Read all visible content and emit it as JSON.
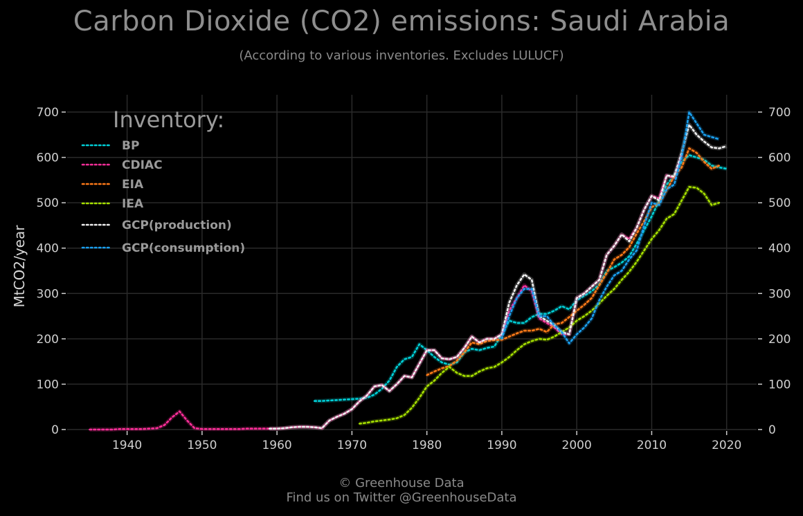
{
  "title": "Carbon Dioxide (CO2) emissions: Saudi Arabia",
  "subtitle": "(According to various inventories. Excludes LULUCF)",
  "footer": {
    "line1": "© Greenhouse Data",
    "line2": "Find us on Twitter @GreenhouseData"
  },
  "chart_data": {
    "type": "line",
    "ylabel": "MtCO2/year",
    "xlim": [
      1932,
      2024
    ],
    "ylim": [
      0,
      700
    ],
    "xticks": [
      1940,
      1950,
      1960,
      1970,
      1980,
      1990,
      2000,
      2010,
      2020
    ],
    "yticks": [
      0,
      100,
      200,
      300,
      400,
      500,
      600,
      700
    ],
    "grid": true,
    "legend_title": "Inventory:",
    "legend_position": "top-left",
    "series": [
      {
        "name": "BP",
        "color": "#00d0d8",
        "x": [
          1965,
          1966,
          1967,
          1968,
          1969,
          1970,
          1971,
          1972,
          1973,
          1974,
          1975,
          1976,
          1977,
          1978,
          1979,
          1980,
          1981,
          1982,
          1983,
          1984,
          1985,
          1986,
          1987,
          1988,
          1989,
          1990,
          1991,
          1992,
          1993,
          1994,
          1995,
          1996,
          1997,
          1998,
          1999,
          2000,
          2001,
          2002,
          2003,
          2004,
          2005,
          2006,
          2007,
          2008,
          2009,
          2010,
          2011,
          2012,
          2013,
          2014,
          2015,
          2016,
          2017,
          2018,
          2019,
          2020
        ],
        "y": [
          63,
          63,
          64,
          65,
          66,
          67,
          68,
          70,
          77,
          90,
          108,
          138,
          155,
          160,
          188,
          175,
          160,
          148,
          143,
          148,
          170,
          178,
          175,
          180,
          183,
          210,
          240,
          235,
          235,
          248,
          255,
          255,
          262,
          272,
          265,
          285,
          295,
          305,
          320,
          350,
          358,
          368,
          382,
          410,
          440,
          470,
          505,
          540,
          560,
          590,
          605,
          600,
          595,
          582,
          578,
          575
        ]
      },
      {
        "name": "CDIAC",
        "color": "#ff2e9a",
        "x": [
          1935,
          1936,
          1937,
          1938,
          1939,
          1940,
          1941,
          1942,
          1943,
          1944,
          1945,
          1946,
          1947,
          1948,
          1949,
          1950,
          1951,
          1952,
          1953,
          1954,
          1955,
          1956,
          1957,
          1958,
          1959,
          1960,
          1961,
          1962,
          1963,
          1964,
          1965,
          1966,
          1967,
          1968,
          1969,
          1970,
          1971,
          1972,
          1973,
          1974,
          1975,
          1976,
          1977,
          1978,
          1979,
          1980,
          1981,
          1982,
          1983,
          1984,
          1985,
          1986,
          1987,
          1988,
          1989,
          1990,
          1991,
          1992,
          1993,
          1994,
          1995,
          1996,
          1997,
          1998,
          1999,
          2000,
          2001,
          2002,
          2003,
          2004,
          2005,
          2006,
          2007,
          2008,
          2009,
          2010,
          2011,
          2012,
          2013,
          2014
        ],
        "y": [
          0,
          0,
          0,
          0,
          1,
          1,
          1,
          1,
          2,
          3,
          10,
          27,
          40,
          20,
          3,
          1,
          1,
          1,
          1,
          1,
          1,
          2,
          2,
          2,
          2,
          2,
          3,
          5,
          6,
          6,
          5,
          3,
          20,
          28,
          35,
          45,
          62,
          75,
          95,
          98,
          85,
          100,
          118,
          115,
          145,
          175,
          175,
          157,
          155,
          160,
          180,
          205,
          192,
          200,
          200,
          210,
          262,
          290,
          318,
          305,
          245,
          235,
          225,
          210,
          210,
          290,
          300,
          315,
          330,
          385,
          405,
          430,
          420,
          445,
          485,
          515,
          510,
          560,
          555,
          605
        ]
      },
      {
        "name": "EIA",
        "color": "#ff7a18",
        "x": [
          1980,
          1981,
          1982,
          1983,
          1984,
          1985,
          1986,
          1987,
          1988,
          1989,
          1990,
          1991,
          1992,
          1993,
          1994,
          1995,
          1996,
          1997,
          1998,
          1999,
          2000,
          2001,
          2002,
          2003,
          2004,
          2005,
          2006,
          2007,
          2008,
          2009,
          2010,
          2011,
          2012,
          2013,
          2014,
          2015,
          2016,
          2017,
          2018,
          2019
        ],
        "y": [
          120,
          128,
          135,
          140,
          152,
          170,
          192,
          188,
          195,
          197,
          198,
          205,
          212,
          218,
          218,
          222,
          215,
          232,
          235,
          248,
          262,
          275,
          290,
          318,
          345,
          375,
          385,
          402,
          432,
          460,
          490,
          500,
          528,
          558,
          578,
          620,
          610,
          590,
          575,
          582
        ]
      },
      {
        "name": "IEA",
        "color": "#a6e000",
        "x": [
          1971,
          1972,
          1973,
          1974,
          1975,
          1976,
          1977,
          1978,
          1979,
          1980,
          1981,
          1982,
          1983,
          1984,
          1985,
          1986,
          1987,
          1988,
          1989,
          1990,
          1991,
          1992,
          1993,
          1994,
          1995,
          1996,
          1997,
          1998,
          1999,
          2000,
          2001,
          2002,
          2003,
          2004,
          2005,
          2006,
          2007,
          2008,
          2009,
          2010,
          2011,
          2012,
          2013,
          2014,
          2015,
          2016,
          2017,
          2018,
          2019
        ],
        "y": [
          13,
          15,
          18,
          20,
          22,
          25,
          32,
          48,
          70,
          95,
          108,
          125,
          138,
          125,
          118,
          118,
          128,
          135,
          138,
          148,
          160,
          175,
          188,
          195,
          200,
          198,
          205,
          215,
          225,
          240,
          250,
          262,
          278,
          295,
          310,
          330,
          348,
          370,
          395,
          420,
          440,
          465,
          475,
          505,
          535,
          533,
          520,
          495,
          500
        ]
      },
      {
        "name": "GCP(production)",
        "color": "#f0f0f0",
        "x": [
          1959,
          1960,
          1961,
          1962,
          1963,
          1964,
          1965,
          1966,
          1967,
          1968,
          1969,
          1970,
          1971,
          1972,
          1973,
          1974,
          1975,
          1976,
          1977,
          1978,
          1979,
          1980,
          1981,
          1982,
          1983,
          1984,
          1985,
          1986,
          1987,
          1988,
          1989,
          1990,
          1991,
          1992,
          1993,
          1994,
          1995,
          1996,
          1997,
          1998,
          1999,
          2000,
          2001,
          2002,
          2003,
          2004,
          2005,
          2006,
          2007,
          2008,
          2009,
          2010,
          2011,
          2012,
          2013,
          2014,
          2015,
          2016,
          2017,
          2018,
          2019,
          2020
        ],
        "y": [
          2,
          2,
          3,
          5,
          6,
          6,
          5,
          3,
          20,
          28,
          35,
          45,
          62,
          75,
          95,
          98,
          85,
          100,
          118,
          115,
          145,
          175,
          175,
          157,
          155,
          160,
          180,
          205,
          192,
          200,
          200,
          210,
          280,
          318,
          342,
          330,
          250,
          240,
          230,
          215,
          210,
          290,
          300,
          315,
          330,
          385,
          405,
          430,
          415,
          445,
          485,
          515,
          505,
          560,
          558,
          610,
          672,
          650,
          635,
          622,
          620,
          625
        ]
      },
      {
        "name": "GCP(consumption)",
        "color": "#1aa0f0",
        "x": [
          1990,
          1991,
          1992,
          1993,
          1994,
          1995,
          1996,
          1997,
          1998,
          1999,
          2000,
          2001,
          2002,
          2003,
          2004,
          2005,
          2006,
          2007,
          2008,
          2009,
          2010,
          2011,
          2012,
          2013,
          2014,
          2015,
          2016,
          2017,
          2018,
          2019
        ],
        "y": [
          200,
          250,
          290,
          310,
          310,
          250,
          250,
          230,
          215,
          190,
          210,
          225,
          245,
          285,
          315,
          340,
          350,
          375,
          395,
          450,
          500,
          495,
          530,
          540,
          600,
          700,
          675,
          650,
          645,
          640
        ]
      }
    ]
  }
}
